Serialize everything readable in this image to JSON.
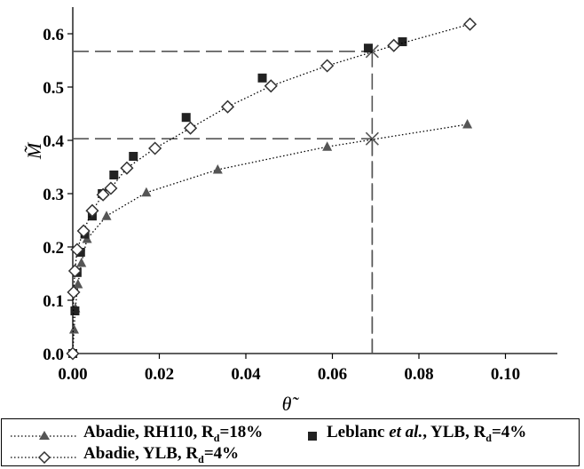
{
  "chart_data": {
    "type": "scatter",
    "xlabel": "θ̃",
    "ylabel": "M̃",
    "xlim": [
      0.0,
      0.112
    ],
    "ylim": [
      0.0,
      0.65
    ],
    "x_ticks": [
      "0.00",
      "0.02",
      "0.04",
      "0.06",
      "0.08",
      "0.10"
    ],
    "x_tick_values": [
      0.0,
      0.02,
      0.04,
      0.06,
      0.08,
      0.1
    ],
    "y_ticks": [
      "0.0",
      "0.1",
      "0.2",
      "0.3",
      "0.4",
      "0.5",
      "0.6"
    ],
    "y_tick_values": [
      0.0,
      0.1,
      0.2,
      0.3,
      0.4,
      0.5,
      0.6
    ],
    "grid": false,
    "legend_position": "bottom",
    "series": [
      {
        "name": "Abadie, RH110, Rd=18%",
        "label_text": "Abadie, RH110, R",
        "label_sub": "d",
        "label_suffix": "=18%",
        "marker": "triangle",
        "color": "#555555",
        "line": "dotted",
        "x": [
          0.0,
          0.0003,
          0.0006,
          0.0012,
          0.002,
          0.0033,
          0.0078,
          0.017,
          0.0335,
          0.0588,
          0.0912
        ],
        "y": [
          0.0,
          0.045,
          0.085,
          0.13,
          0.17,
          0.215,
          0.258,
          0.302,
          0.345,
          0.388,
          0.43
        ]
      },
      {
        "name": "Leblanc et al., YLB, Rd=4%",
        "label_pre": "Leblanc ",
        "label_em": "et al.",
        "label_text": ", YLB, R",
        "label_sub": "d",
        "label_suffix": "=4%",
        "marker": "square",
        "color": "#222222",
        "line": "none",
        "x": [
          0.0,
          0.0005,
          0.001,
          0.0018,
          0.0028,
          0.0045,
          0.0068,
          0.0095,
          0.014,
          0.0262,
          0.0438,
          0.0683,
          0.0762
        ],
        "y": [
          0.0,
          0.08,
          0.152,
          0.19,
          0.224,
          0.258,
          0.3,
          0.335,
          0.37,
          0.443,
          0.517,
          0.573,
          0.585
        ]
      },
      {
        "name": "Abadie, YLB, Rd=4%",
        "label_text": "Abadie, YLB, R",
        "label_sub": "d",
        "label_suffix": "=4%",
        "marker": "diamond",
        "color": "#333333",
        "line": "dotted",
        "x": [
          0.0,
          0.0002,
          0.0005,
          0.001,
          0.0025,
          0.0045,
          0.007,
          0.0088,
          0.0125,
          0.019,
          0.0272,
          0.0358,
          0.0458,
          0.0588,
          0.0742,
          0.0918
        ],
        "y": [
          0.0,
          0.115,
          0.155,
          0.195,
          0.23,
          0.268,
          0.298,
          0.31,
          0.348,
          0.385,
          0.423,
          0.463,
          0.502,
          0.54,
          0.578,
          0.618
        ]
      }
    ],
    "annotations": [
      {
        "type": "crosshair",
        "x": 0.0692,
        "y": 0.567
      },
      {
        "type": "crosshair",
        "x": 0.0692,
        "y": 0.403
      }
    ]
  }
}
